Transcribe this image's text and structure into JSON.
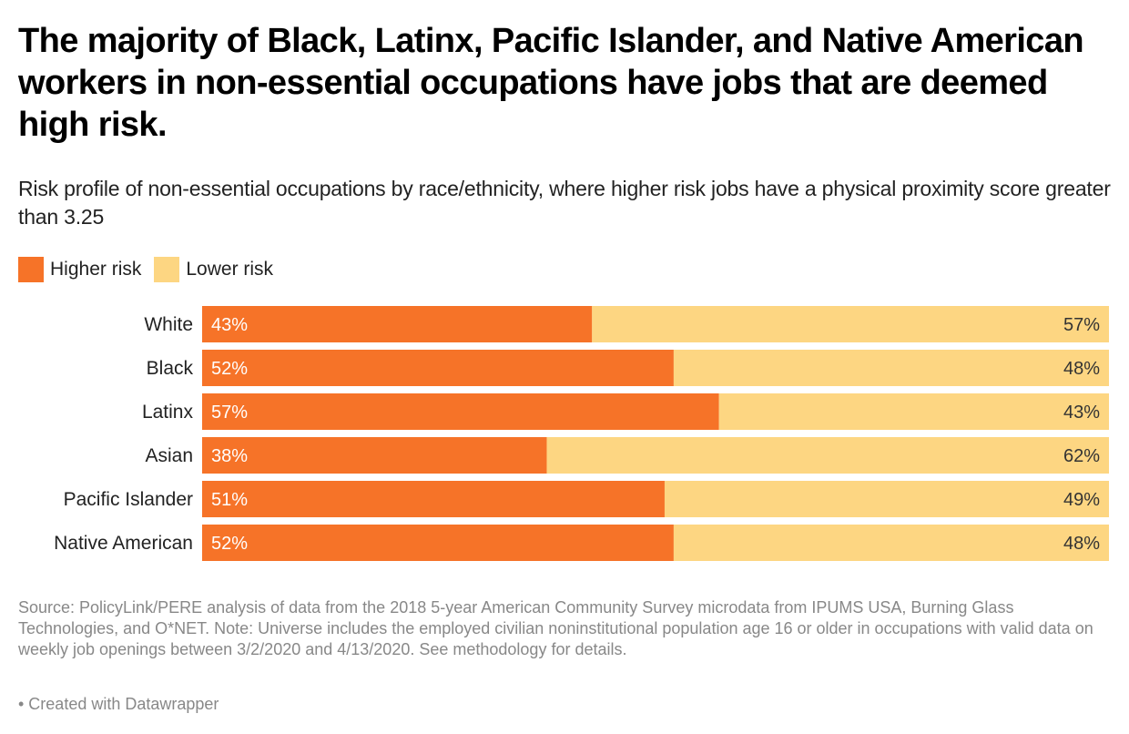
{
  "header": {
    "title": "The majority of Black, Latinx, Pacific Islander, and Native American workers in non-essential occupations have jobs that are deemed high risk.",
    "subtitle": "Risk profile of non-essential occupations by race/ethnicity, where higher risk jobs have a physical proximity score greater than 3.25"
  },
  "legend": [
    {
      "label": "Higher risk",
      "color": "#f67328"
    },
    {
      "label": "Lower risk",
      "color": "#fdd682"
    }
  ],
  "footer": {
    "notes": "Source: PolicyLink/PERE analysis of data from the 2018 5-year American Community Survey microdata from IPUMS USA, Burning Glass Technologies, and O*NET. Note: Universe includes the employed civilian noninstitutional population age 16 or older in occupations with valid data on weekly job openings between 3/2/2020 and 4/13/2020. See methodology for details.",
    "credit": "• Created with Datawrapper"
  },
  "chart_data": {
    "type": "bar",
    "orientation": "horizontal",
    "stacked": true,
    "title": "The majority of Black, Latinx, Pacific Islander, and Native American workers in non-essential occupations have jobs that are deemed high risk.",
    "subtitle": "Risk profile of non-essential occupations by race/ethnicity, where higher risk jobs have a physical proximity score greater than 3.25",
    "xlabel": "",
    "ylabel": "",
    "xlim": [
      0,
      100
    ],
    "unit": "%",
    "grid": false,
    "legend_position": "top-left",
    "categories": [
      "White",
      "Black",
      "Latinx",
      "Asian",
      "Pacific Islander",
      "Native American"
    ],
    "series": [
      {
        "name": "Higher risk",
        "color": "#f67328",
        "values": [
          43,
          52,
          57,
          38,
          51,
          52
        ]
      },
      {
        "name": "Lower risk",
        "color": "#fdd682",
        "values": [
          57,
          48,
          43,
          62,
          49,
          48
        ]
      }
    ]
  }
}
